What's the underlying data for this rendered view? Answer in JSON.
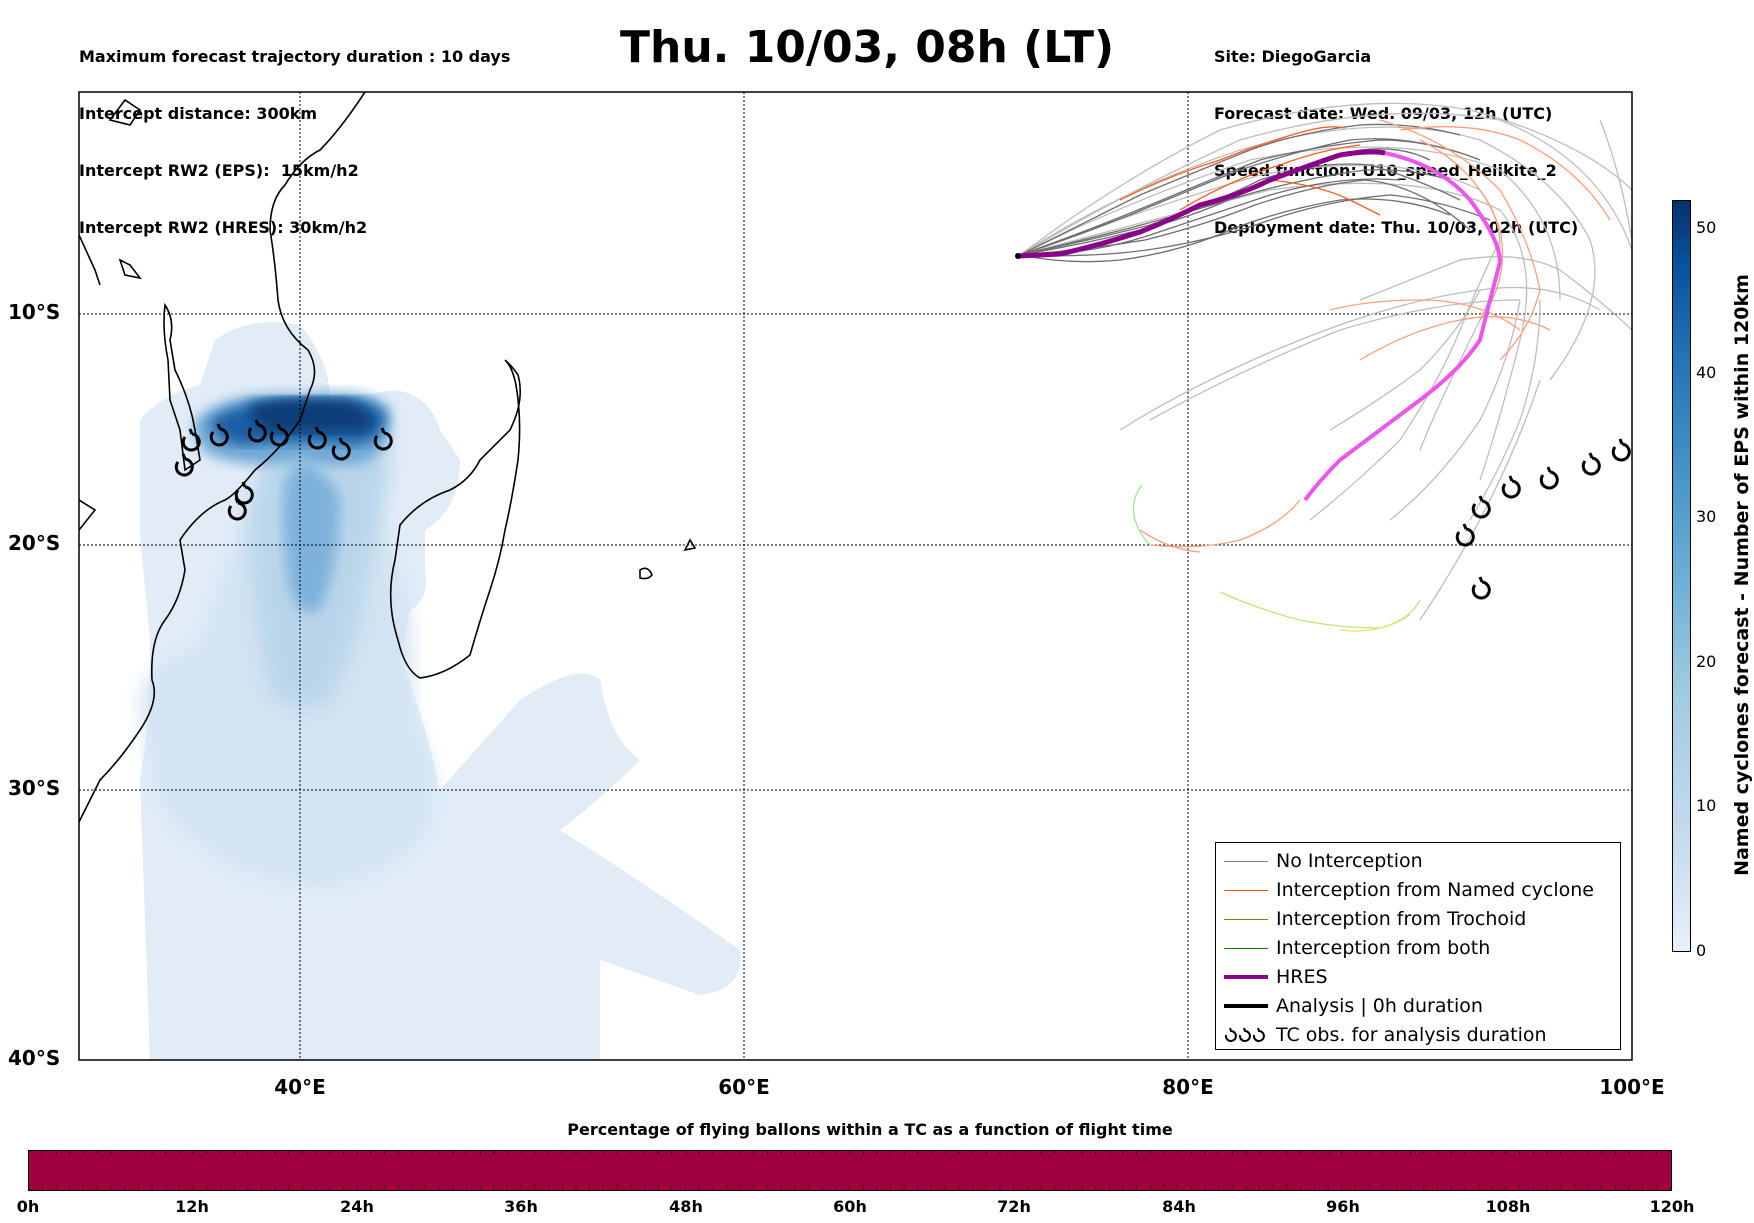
{
  "header": {
    "left_lines": [
      "Maximum forecast trajectory duration : 10 days",
      "Intercept distance: 300km",
      "Intercept RW2 (EPS):  15km/h2",
      "Intercept RW2 (HRES): 30km/h2"
    ],
    "title": "Thu. 10/03, 08h (LT)",
    "right_lines": [
      "Site: DiegoGarcia",
      "Forecast date: Wed. 09/03, 12h (UTC)",
      "Speed function: U10_speed_Helikite_2",
      "Deployment date: Thu. 10/03, 02h (UTC)"
    ]
  },
  "map": {
    "lat_labels": [
      "10°S",
      "20°S",
      "30°S",
      "40°S"
    ],
    "lon_labels": [
      "40°E",
      "60°E",
      "80°E",
      "100°E"
    ]
  },
  "legend": {
    "entries": [
      {
        "label": "No Interception",
        "color": "#808080"
      },
      {
        "label": "Interception from Named cyclone",
        "color": "#ff5000"
      },
      {
        "label": "Interception from Trochoid",
        "color": "#808000"
      },
      {
        "label": "Interception from both",
        "color": "#008000"
      },
      {
        "label": "HRES",
        "color": "#8b008b"
      },
      {
        "label": "Analysis | 0h duration",
        "color": "#000000"
      },
      {
        "label": "TC obs. for analysis duration",
        "icon": "tc-symbol-icon"
      }
    ]
  },
  "colorbar": {
    "label": "Named cyclones forecast - Number of EPS within 120km",
    "ticks": [
      "50",
      "40",
      "30",
      "20",
      "10",
      "0"
    ],
    "range": [
      0,
      52
    ],
    "colors": [
      "#e7f0fa",
      "#08306b"
    ]
  },
  "bottom": {
    "title": "Percentage of flying ballons within a TC as a function of flight time",
    "bar_color": "#a0003d",
    "ticks": [
      "0h",
      "12h",
      "24h",
      "36h",
      "48h",
      "60h",
      "72h",
      "84h",
      "96h",
      "108h",
      "120h"
    ]
  }
}
